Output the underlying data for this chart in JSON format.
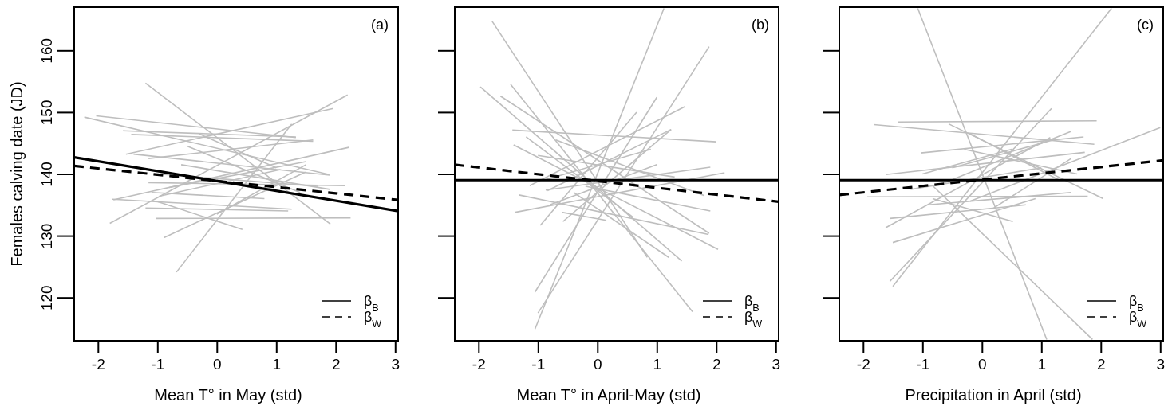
{
  "chart_data": [
    {
      "type": "line",
      "xlabel": "Mean T° in May (std)",
      "ylabel": "Females calving date (JD)",
      "annotations": [
        "(a)"
      ],
      "xlim": [
        -2.4,
        3.05
      ],
      "ylim": [
        113,
        167
      ],
      "xticks": [
        -2,
        -1,
        0,
        1,
        2,
        3
      ],
      "yticks": [
        120,
        130,
        140,
        150,
        160
      ],
      "legend": "bottom right",
      "grid": false,
      "series": [
        {
          "x": [
            -1.2,
            1.91
          ],
          "values": [
            154.7,
            131.9
          ],
          "color": "#bebebe"
        },
        {
          "x": [
            -2.23,
            1.89
          ],
          "values": [
            149.2,
            139.9
          ],
          "color": "#bebebe"
        },
        {
          "x": [
            -2.03,
            1.33
          ],
          "values": [
            149.4,
            145.9
          ],
          "color": "#bebebe"
        },
        {
          "x": [
            2.2,
            -1.8
          ],
          "values": [
            152.8,
            132.0
          ],
          "color": "#bebebe"
        },
        {
          "x": [
            1.96,
            -1.53
          ],
          "values": [
            150.6,
            143.2
          ],
          "color": "#bebebe"
        },
        {
          "x": [
            -0.68,
            1.26
          ],
          "values": [
            124.1,
            148.1
          ],
          "color": "#bebebe"
        },
        {
          "x": [
            -0.89,
            1.49
          ],
          "values": [
            129.7,
            140.3
          ],
          "color": "#bebebe"
        },
        {
          "x": [
            -1.58,
            1.33
          ],
          "values": [
            147.0,
            146.0
          ],
          "color": "#bebebe"
        },
        {
          "x": [
            -1.44,
            1.62
          ],
          "values": [
            146.4,
            145.3
          ],
          "color": "#bebebe"
        },
        {
          "x": [
            2.22,
            -1.74
          ],
          "values": [
            144.3,
            135.8
          ],
          "color": "#bebebe"
        },
        {
          "x": [
            2.25,
            -1.02
          ],
          "values": [
            132.9,
            132.8
          ],
          "color": "#bebebe"
        },
        {
          "x": [
            -1.02,
            0.43
          ],
          "values": [
            135.6,
            131.0
          ],
          "color": "#bebebe"
        },
        {
          "x": [
            -1.76,
            1.26
          ],
          "values": [
            135.9,
            134.3
          ],
          "color": "#bebebe"
        },
        {
          "x": [
            -1.15,
            1.62
          ],
          "values": [
            142.5,
            145.5
          ],
          "color": "#bebebe"
        },
        {
          "x": [
            -1.15,
            2.16
          ],
          "values": [
            138.6,
            138.1
          ],
          "color": "#bebebe"
        },
        {
          "x": [
            -0.97,
            1.07
          ],
          "values": [
            136.4,
            140.7
          ],
          "color": "#bebebe"
        },
        {
          "x": [
            -1.4,
            1.9
          ],
          "values": [
            143.2,
            139.8
          ],
          "color": "#bebebe"
        },
        {
          "x": [
            -0.8,
            1.5
          ],
          "values": [
            137.8,
            142.0
          ],
          "color": "#bebebe"
        },
        {
          "x": [
            -0.5,
            1.4
          ],
          "values": [
            144.5,
            137.0
          ],
          "color": "#bebebe"
        },
        {
          "x": [
            -1.2,
            1.2
          ],
          "values": [
            134.5,
            134.0
          ],
          "color": "#bebebe"
        },
        {
          "x": [
            -0.3,
            1.0
          ],
          "values": [
            146.5,
            141.0
          ],
          "color": "#bebebe"
        },
        {
          "x": [
            -1.0,
            1.7
          ],
          "values": [
            140.0,
            138.0
          ],
          "color": "#bebebe"
        },
        {
          "x": [
            0.0,
            1.5
          ],
          "values": [
            133.5,
            141.5
          ],
          "color": "#bebebe"
        },
        {
          "x": [
            -1.1,
            0.8
          ],
          "values": [
            137.0,
            136.0
          ],
          "color": "#bebebe"
        },
        {
          "x": [
            -0.6,
            1.9
          ],
          "values": [
            141.5,
            137.5
          ],
          "color": "#bebebe"
        },
        {
          "name": "β$_{B}$",
          "x": [
            -2.4,
            3.05
          ],
          "values": [
            142.7,
            134.0
          ],
          "color": "#000000",
          "line_style": "solid"
        },
        {
          "name": "β$_{W}$",
          "x": [
            -2.4,
            3.05
          ],
          "values": [
            141.3,
            135.8
          ],
          "color": "#000000",
          "line_style": "dashed"
        }
      ]
    },
    {
      "type": "line",
      "xlabel": "Mean T° in April-May (std)",
      "annotations": [
        "(b)"
      ],
      "xlim": [
        -2.4,
        3.05
      ],
      "ylim": [
        113,
        167
      ],
      "xticks": [
        -2,
        -1,
        0,
        1,
        2,
        3
      ],
      "yticks": [
        120,
        130,
        140,
        150,
        160
      ],
      "tick_labels": "x",
      "legend": "bottom right",
      "grid": false,
      "series": [
        {
          "x": [
            -1.77,
            0.84
          ],
          "values": [
            164.7,
            126.5
          ],
          "color": "#bebebe"
        },
        {
          "x": [
            1.12,
            -1.05
          ],
          "values": [
            166.8,
            114.9
          ],
          "color": "#bebebe"
        },
        {
          "x": [
            1.88,
            -1.0
          ],
          "values": [
            160.6,
            117.5
          ],
          "color": "#bebebe"
        },
        {
          "x": [
            -1.97,
            1.42
          ],
          "values": [
            154.1,
            125.9
          ],
          "color": "#bebebe"
        },
        {
          "x": [
            -1.46,
            1.6
          ],
          "values": [
            154.5,
            117.7
          ],
          "color": "#bebebe"
        },
        {
          "x": [
            -1.63,
            1.88
          ],
          "values": [
            152.6,
            130.4
          ],
          "color": "#bebebe"
        },
        {
          "x": [
            -1.05,
            1.0
          ],
          "values": [
            120.9,
            152.4
          ],
          "color": "#bebebe"
        },
        {
          "x": [
            1.47,
            -1.14
          ],
          "values": [
            150.9,
            138.1
          ],
          "color": "#bebebe"
        },
        {
          "x": [
            -1.43,
            2.0
          ],
          "values": [
            147.1,
            145.2
          ],
          "color": "#bebebe"
        },
        {
          "x": [
            -1.41,
            2.03
          ],
          "values": [
            144.7,
            127.8
          ],
          "color": "#bebebe"
        },
        {
          "x": [
            2.14,
            -1.38
          ],
          "values": [
            140.2,
            133.8
          ],
          "color": "#bebebe"
        },
        {
          "x": [
            1.9,
            -0.87
          ],
          "values": [
            141.1,
            137.4
          ],
          "color": "#bebebe"
        },
        {
          "x": [
            -1.32,
            1.87
          ],
          "values": [
            136.6,
            130.2
          ],
          "color": "#bebebe"
        },
        {
          "x": [
            -0.58,
            1.24
          ],
          "values": [
            132.3,
            147.2
          ],
          "color": "#bebebe"
        },
        {
          "x": [
            0.66,
            -0.96
          ],
          "values": [
            150.0,
            131.7
          ],
          "color": "#bebebe"
        },
        {
          "x": [
            1.24,
            -0.84
          ],
          "values": [
            147.2,
            137.3
          ],
          "color": "#bebebe"
        },
        {
          "x": [
            -0.6,
            0.15
          ],
          "values": [
            133.8,
            132.5
          ],
          "color": "#bebebe"
        },
        {
          "x": [
            -1.0,
            1.3
          ],
          "values": [
            143.0,
            139.5
          ],
          "color": "#bebebe"
        },
        {
          "x": [
            -0.9,
            0.9
          ],
          "values": [
            139.0,
            144.0
          ],
          "color": "#bebebe"
        },
        {
          "x": [
            -0.7,
            1.8
          ],
          "values": [
            145.5,
            136.5
          ],
          "color": "#bebebe"
        },
        {
          "x": [
            -0.4,
            1.2
          ],
          "values": [
            137.0,
            126.5
          ],
          "color": "#bebebe"
        },
        {
          "x": [
            -1.2,
            0.6
          ],
          "values": [
            146.0,
            133.0
          ],
          "color": "#bebebe"
        },
        {
          "x": [
            -0.2,
            1.9
          ],
          "values": [
            138.0,
            134.0
          ],
          "color": "#bebebe"
        },
        {
          "x": [
            -0.8,
            1.0
          ],
          "values": [
            135.0,
            141.5
          ],
          "color": "#bebebe"
        },
        {
          "name": "β$_{B}$",
          "x": [
            -2.4,
            3.05
          ],
          "values": [
            139.0,
            139.0
          ],
          "color": "#000000",
          "line_style": "solid"
        },
        {
          "name": "β$_{W}$",
          "x": [
            -2.4,
            3.05
          ],
          "values": [
            141.5,
            135.5
          ],
          "color": "#000000",
          "line_style": "dashed"
        }
      ]
    },
    {
      "type": "line",
      "xlabel": "Precipitation in April (std)",
      "annotations": [
        "(c)"
      ],
      "xlim": [
        -2.4,
        3.05
      ],
      "ylim": [
        113,
        167
      ],
      "xticks": [
        -2,
        -1,
        0,
        1,
        2,
        3
      ],
      "yticks": [
        120,
        130,
        140,
        150,
        160
      ],
      "tick_labels": "x",
      "legend": "bottom right",
      "grid": false,
      "series": [
        {
          "x": [
            -1.08,
            1.09
          ],
          "values": [
            166.8,
            113.2
          ],
          "color": "#bebebe"
        },
        {
          "x": [
            2.18,
            -1.5
          ],
          "values": [
            166.8,
            121.8
          ],
          "color": "#bebebe"
        },
        {
          "x": [
            3.0,
            -0.2
          ],
          "values": [
            147.5,
            135.6
          ],
          "color": "#bebebe"
        },
        {
          "x": [
            1.86,
            -0.83
          ],
          "values": [
            113.2,
            138.1
          ],
          "color": "#bebebe"
        },
        {
          "x": [
            1.17,
            -1.55
          ],
          "values": [
            150.6,
            122.6
          ],
          "color": "#bebebe"
        },
        {
          "x": [
            -1.82,
            1.89
          ],
          "values": [
            148.0,
            144.8
          ],
          "color": "#bebebe"
        },
        {
          "x": [
            -1.41,
            1.93
          ],
          "values": [
            148.4,
            148.6
          ],
          "color": "#bebebe"
        },
        {
          "x": [
            -1.62,
            1.73
          ],
          "values": [
            139.9,
            143.5
          ],
          "color": "#bebebe"
        },
        {
          "x": [
            -1.93,
            1.78
          ],
          "values": [
            136.3,
            136.4
          ],
          "color": "#bebebe"
        },
        {
          "x": [
            -1.62,
            1.15
          ],
          "values": [
            131.3,
            145.9
          ],
          "color": "#bebebe"
        },
        {
          "x": [
            -1.5,
            0.9
          ],
          "values": [
            128.9,
            136.0
          ],
          "color": "#bebebe"
        },
        {
          "x": [
            -1.55,
            0.74
          ],
          "values": [
            132.8,
            135.0
          ],
          "color": "#bebebe"
        },
        {
          "x": [
            -0.56,
            2.04
          ],
          "values": [
            148.1,
            136.0
          ],
          "color": "#bebebe"
        },
        {
          "x": [
            -1.03,
            1.71
          ],
          "values": [
            143.4,
            146.0
          ],
          "color": "#bebebe"
        },
        {
          "x": [
            -0.83,
            0.52
          ],
          "values": [
            136.0,
            132.3
          ],
          "color": "#bebebe"
        },
        {
          "x": [
            1.5,
            -0.65
          ],
          "values": [
            146.9,
            138.5
          ],
          "color": "#bebebe"
        },
        {
          "x": [
            -0.5,
            1.2
          ],
          "values": [
            141.0,
            145.5
          ],
          "color": "#bebebe"
        },
        {
          "x": [
            -1.2,
            1.0
          ],
          "values": [
            137.5,
            141.0
          ],
          "color": "#bebebe"
        },
        {
          "x": [
            -0.3,
            1.6
          ],
          "values": [
            144.0,
            140.0
          ],
          "color": "#bebebe"
        },
        {
          "x": [
            -0.9,
            1.5
          ],
          "values": [
            135.0,
            137.0
          ],
          "color": "#bebebe"
        },
        {
          "x": [
            -0.2,
            1.3
          ],
          "values": [
            146.5,
            139.0
          ],
          "color": "#bebebe"
        },
        {
          "x": [
            -1.0,
            0.5
          ],
          "values": [
            140.0,
            144.0
          ],
          "color": "#bebebe"
        },
        {
          "x": [
            0.2,
            1.5
          ],
          "values": [
            134.5,
            142.5
          ],
          "color": "#bebebe"
        },
        {
          "name": "β$_{B}$",
          "x": [
            -2.4,
            3.05
          ],
          "values": [
            139.0,
            139.0
          ],
          "color": "#000000",
          "line_style": "solid"
        },
        {
          "name": "β$_{W}$",
          "x": [
            -2.4,
            3.05
          ],
          "values": [
            136.6,
            142.2
          ],
          "color": "#000000",
          "line_style": "dashed"
        }
      ]
    }
  ]
}
